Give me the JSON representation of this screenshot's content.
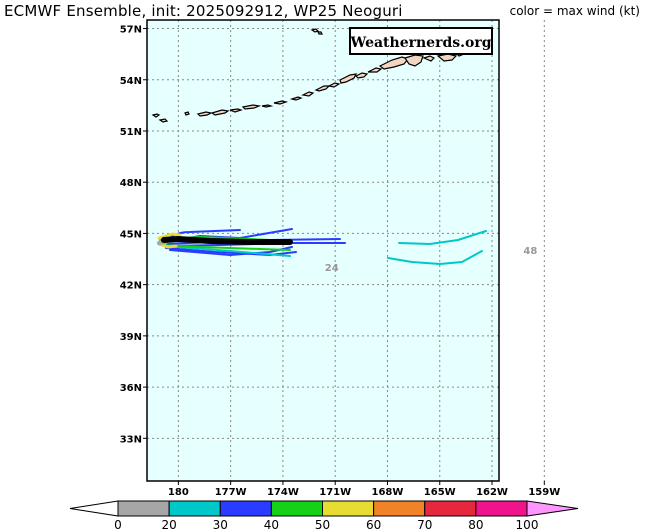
{
  "header": {
    "title": "ECMWF Ensemble, init: 2025092912, WP25 Neoguri",
    "color_note": "color = max wind (kt)"
  },
  "watermark": "Weathernerds.org",
  "map": {
    "lat_range": [
      30.5,
      57.5
    ],
    "lon_range_west": [
      181.8,
      161.6
    ],
    "lat_labels": [
      "57N",
      "54N",
      "51N",
      "48N",
      "45N",
      "42N",
      "39N",
      "36N",
      "33N"
    ],
    "lat_values": [
      57,
      54,
      51,
      48,
      45,
      42,
      39,
      36,
      33
    ],
    "lon_labels": [
      "180",
      "177W",
      "174W",
      "171W",
      "168W",
      "165W",
      "162W",
      "159W"
    ],
    "lon_values": [
      180,
      177,
      174,
      171,
      168,
      165,
      162,
      159
    ],
    "forecast_hour_labels": [
      {
        "text": "24",
        "lat": 42.8,
        "lon": 171.2
      },
      {
        "text": "48",
        "lat": 43.8,
        "lon": 159.8
      }
    ],
    "colors": {
      "ocean": "#e6ffff",
      "land": "#f2d6c2",
      "grid": "#888888"
    }
  },
  "colorbar": {
    "ticks": [
      "0",
      "20",
      "30",
      "40",
      "50",
      "60",
      "70",
      "80",
      "100"
    ],
    "bins": [
      {
        "range": "<0",
        "color": "#ffffff"
      },
      {
        "range": "0-20",
        "color": "#a6a6a6"
      },
      {
        "range": "20-30",
        "color": "#00c8c8"
      },
      {
        "range": "30-40",
        "color": "#2a3cff"
      },
      {
        "range": "40-50",
        "color": "#16d216"
      },
      {
        "range": "50-60",
        "color": "#e6dc32"
      },
      {
        "range": "60-70",
        "color": "#f08228"
      },
      {
        "range": "70-80",
        "color": "#e6283c"
      },
      {
        "range": "80-100",
        "color": "#f0148c"
      },
      {
        "range": ">100",
        "color": "#ff96ff"
      }
    ]
  }
}
